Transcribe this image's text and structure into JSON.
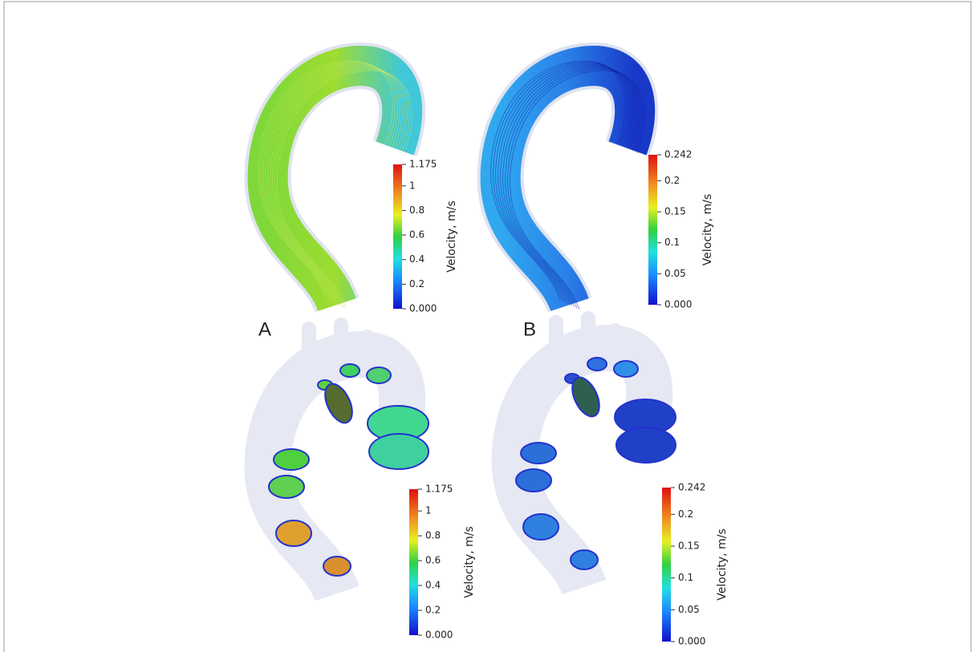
{
  "panels": [
    {
      "label": "A",
      "colorbar": {
        "title": "Velocity, m/s",
        "lim": [
          0,
          1.175
        ],
        "ticks": [
          {
            "value": 0,
            "label": "0.000"
          },
          0.2,
          0.4,
          0.6,
          0.8,
          1,
          1.175
        ]
      }
    },
    {
      "label": "B",
      "colorbar": {
        "title": "Velocity, m/s",
        "lim": [
          0,
          0.242
        ],
        "ticks": [
          {
            "value": 0,
            "label": "0.000"
          },
          0.05,
          0.1,
          0.15,
          0.2,
          0.242
        ]
      }
    },
    {
      "colorbar": {
        "title": "Velocity, m/s",
        "lim": [
          0,
          1.175
        ],
        "ticks": [
          {
            "value": 0,
            "label": "0.000"
          },
          0.2,
          0.4,
          0.6,
          0.8,
          1,
          1.175
        ]
      }
    },
    {
      "colorbar": {
        "title": "Velocity, m/s",
        "lim": [
          0,
          0.242
        ],
        "ticks": [
          {
            "value": 0,
            "label": "0.000"
          },
          0.05,
          0.1,
          0.15,
          0.2,
          0.242
        ]
      }
    }
  ]
}
